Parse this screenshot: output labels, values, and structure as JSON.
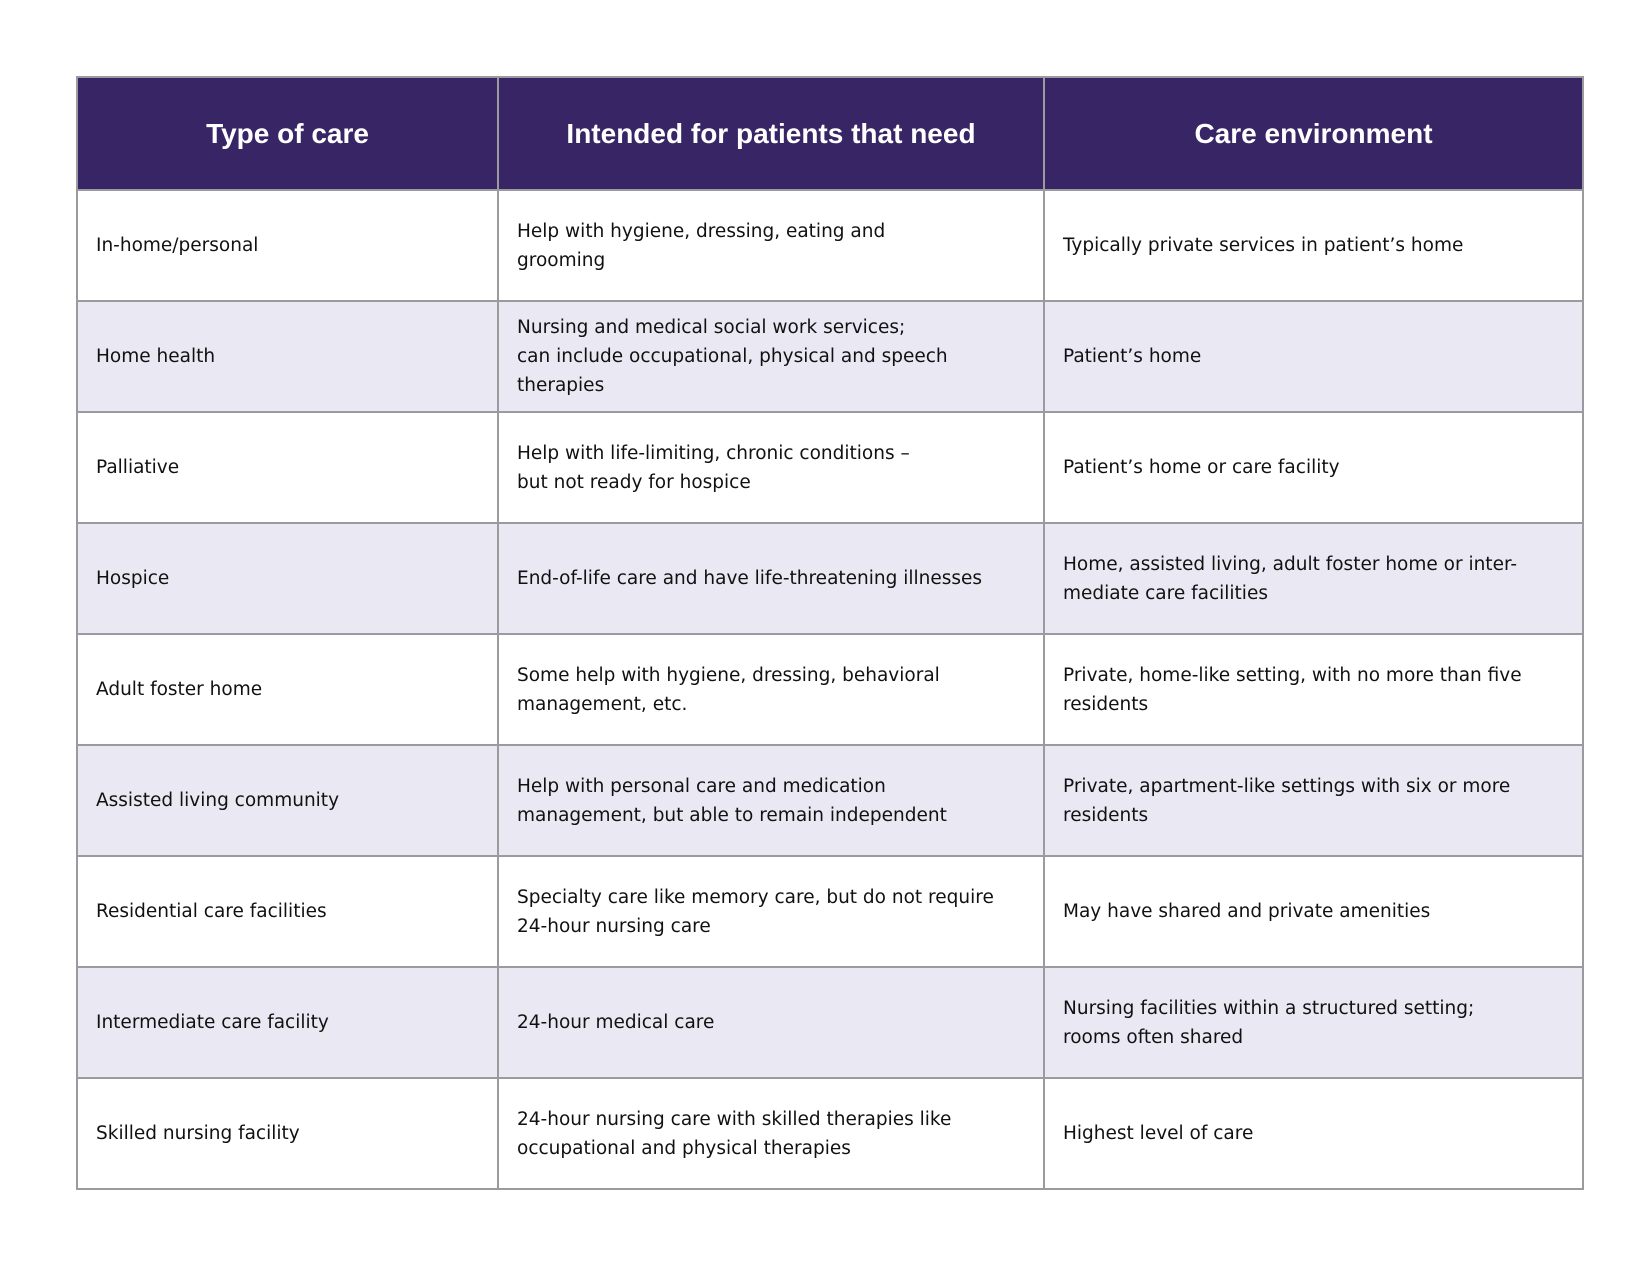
{
  "table": {
    "header": [
      "Type of care",
      "Intended for patients that need",
      "Care environment"
    ],
    "rows": [
      [
        [
          "In-home/personal"
        ],
        [
          "Help with hygiene, dressing, eating and",
          "grooming"
        ],
        [
          "Typically private services in patient’s home"
        ]
      ],
      [
        [
          "Home health"
        ],
        [
          "Nursing and medical social work services;",
          "can include occupational, physical and speech",
          "therapies"
        ],
        [
          "Patient’s home"
        ]
      ],
      [
        [
          "Palliative"
        ],
        [
          "Help with life-limiting, chronic conditions –",
          "but not ready for hospice"
        ],
        [
          "Patient’s home or care facility"
        ]
      ],
      [
        [
          "Hospice"
        ],
        [
          "End-of-life care and have life-threatening illnesses"
        ],
        [
          "Home, assisted living, adult foster home or inter-",
          "mediate care facilities"
        ]
      ],
      [
        [
          "Adult foster home"
        ],
        [
          "Some help with hygiene, dressing, behavioral",
          "management, etc."
        ],
        [
          "Private, home-like setting, with no more than five",
          "residents"
        ]
      ],
      [
        [
          "Assisted living community"
        ],
        [
          "Help with personal care and medication",
          "management, but able to remain independent"
        ],
        [
          "Private, apartment-like settings with six or more",
          "residents"
        ]
      ],
      [
        [
          "Residential care facilities"
        ],
        [
          "Specialty care like memory care, but do not require",
          "24-hour nursing care"
        ],
        [
          "May have shared and private amenities"
        ]
      ],
      [
        [
          "Intermediate care facility"
        ],
        [
          "24-hour medical care"
        ],
        [
          "Nursing facilities within a structured setting;",
          "rooms often shared"
        ]
      ],
      [
        [
          "Skilled nursing facility"
        ],
        [
          "24-hour nursing care with skilled therapies like",
          "occupational and physical therapies"
        ],
        [
          "Highest level of care"
        ]
      ]
    ]
  }
}
